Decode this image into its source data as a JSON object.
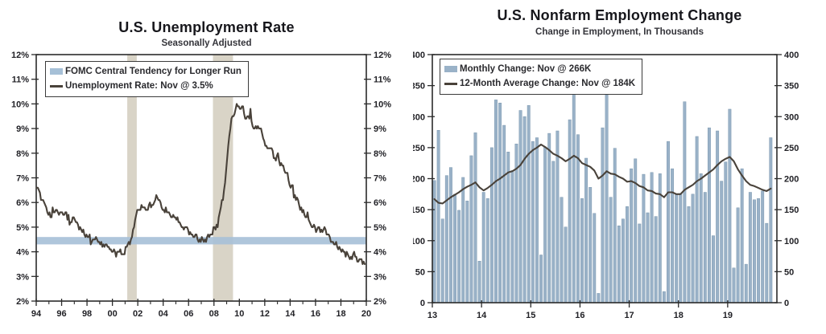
{
  "page": {
    "background": "#ffffff"
  },
  "colors": {
    "bar": "#9AB2C8",
    "bar_edge": "#7E99B0",
    "line": "#49423A",
    "fomc_band": "#A6C0D7",
    "recession_band": "#D9D4C7",
    "axis": "#2B2B2B",
    "text": "#212126"
  },
  "chart_data": [
    {
      "type": "line",
      "title": "U.S. Unemployment Rate",
      "subtitle": "Seasonally Adjusted",
      "legend": [
        {
          "label": "FOMC Central Tendency for Longer Run",
          "swatch": "band"
        },
        {
          "label": "Unemployment Rate: Nov @ 3.5%",
          "swatch": "line"
        }
      ],
      "xlim": [
        1994,
        2020
      ],
      "ylim": [
        2,
        12
      ],
      "y_tick_step": 1,
      "y_suffix": "%",
      "x_major_step": 2,
      "x_tick_labels": [
        "94",
        "96",
        "98",
        "00",
        "02",
        "04",
        "06",
        "08",
        "10",
        "12",
        "14",
        "16",
        "18",
        "20"
      ],
      "grid": false,
      "legend_position": "top-left",
      "fomc_band": {
        "low": 4.3,
        "high": 4.6
      },
      "recession_bands": [
        [
          2001.17,
          2001.92
        ],
        [
          2007.92,
          2009.5
        ]
      ],
      "series": [
        {
          "name": "Unemployment Rate",
          "draw": "line",
          "start_year": 1994,
          "freq": "monthly",
          "values": [
            6.6,
            6.6,
            6.5,
            6.4,
            6.1,
            6.1,
            6.1,
            6.0,
            5.9,
            5.8,
            5.6,
            5.5,
            5.6,
            5.4,
            5.4,
            5.8,
            5.6,
            5.6,
            5.7,
            5.7,
            5.6,
            5.5,
            5.6,
            5.6,
            5.6,
            5.5,
            5.5,
            5.6,
            5.6,
            5.3,
            5.5,
            5.1,
            5.2,
            5.2,
            5.4,
            5.4,
            5.3,
            5.2,
            5.2,
            5.1,
            4.9,
            5.0,
            4.9,
            4.8,
            4.9,
            4.7,
            4.6,
            4.7,
            4.6,
            4.6,
            4.7,
            4.3,
            4.4,
            4.5,
            4.5,
            4.5,
            4.6,
            4.5,
            4.4,
            4.4,
            4.3,
            4.4,
            4.2,
            4.3,
            4.2,
            4.3,
            4.3,
            4.2,
            4.2,
            4.1,
            4.1,
            4.0,
            4.0,
            4.1,
            4.0,
            3.8,
            4.0,
            4.0,
            4.0,
            4.1,
            3.9,
            3.9,
            3.9,
            3.9,
            4.2,
            4.2,
            4.3,
            4.4,
            4.3,
            4.5,
            4.6,
            4.9,
            5.0,
            5.3,
            5.5,
            5.7,
            5.7,
            5.7,
            5.7,
            5.9,
            5.8,
            5.8,
            5.8,
            5.7,
            5.7,
            5.7,
            5.9,
            6.0,
            5.8,
            5.9,
            5.9,
            6.0,
            6.1,
            6.3,
            6.2,
            6.1,
            6.1,
            6.0,
            5.8,
            5.7,
            5.7,
            5.6,
            5.8,
            5.6,
            5.6,
            5.6,
            5.5,
            5.4,
            5.4,
            5.5,
            5.4,
            5.4,
            5.3,
            5.4,
            5.2,
            5.2,
            5.1,
            5.0,
            5.0,
            4.9,
            5.0,
            5.0,
            5.0,
            4.9,
            4.7,
            4.8,
            4.7,
            4.7,
            4.6,
            4.6,
            4.7,
            4.7,
            4.5,
            4.4,
            4.5,
            4.4,
            4.6,
            4.5,
            4.4,
            4.5,
            4.4,
            4.6,
            4.7,
            4.6,
            4.7,
            4.7,
            4.7,
            5.0,
            5.0,
            4.9,
            5.1,
            5.0,
            5.4,
            5.6,
            5.8,
            6.1,
            6.1,
            6.5,
            6.8,
            7.3,
            7.8,
            8.3,
            8.7,
            9.0,
            9.4,
            9.5,
            9.5,
            9.6,
            9.8,
            10.0,
            9.9,
            9.9,
            9.8,
            9.8,
            9.9,
            9.9,
            9.6,
            9.4,
            9.4,
            9.5,
            9.5,
            9.4,
            9.8,
            9.3,
            9.1,
            9.0,
            9.0,
            9.1,
            9.0,
            9.1,
            9.0,
            9.0,
            9.0,
            8.8,
            8.6,
            8.5,
            8.3,
            8.3,
            8.2,
            8.2,
            8.2,
            8.2,
            8.2,
            8.1,
            7.8,
            7.8,
            7.7,
            7.9,
            8.0,
            7.7,
            7.5,
            7.6,
            7.5,
            7.5,
            7.3,
            7.2,
            7.2,
            7.2,
            6.9,
            6.7,
            6.6,
            6.7,
            6.7,
            6.2,
            6.3,
            6.1,
            6.2,
            6.1,
            5.9,
            5.7,
            5.8,
            5.6,
            5.7,
            5.5,
            5.4,
            5.4,
            5.6,
            5.3,
            5.2,
            5.1,
            5.0,
            5.0,
            5.1,
            5.0,
            4.8,
            4.9,
            5.0,
            5.0,
            4.8,
            4.9,
            4.8,
            4.9,
            5.0,
            4.9,
            4.7,
            4.7,
            4.7,
            4.6,
            4.4,
            4.4,
            4.4,
            4.3,
            4.3,
            4.4,
            4.2,
            4.1,
            4.2,
            4.1,
            4.0,
            4.1,
            4.0,
            4.0,
            3.8,
            4.0,
            3.9,
            3.8,
            3.7,
            3.8,
            3.7,
            3.9,
            4.0,
            3.8,
            3.8,
            3.6,
            3.6,
            3.7,
            3.7,
            3.7,
            3.5,
            3.6,
            3.5
          ]
        }
      ]
    },
    {
      "type": "bar",
      "title": "U.S. Nonfarm Employment Change",
      "subtitle": "Change in Employment, In Thousands",
      "legend": [
        {
          "label": "Monthly Change: Nov @ 266K",
          "swatch": "bar"
        },
        {
          "label": "12-Month Average Change: Nov @ 184K",
          "swatch": "line"
        }
      ],
      "xlim": [
        2013,
        2020
      ],
      "ylim": [
        0,
        400
      ],
      "y_tick_step": 50,
      "y_suffix": "",
      "x_major_step": 1,
      "x_tick_labels": [
        "13",
        "14",
        "15",
        "16",
        "17",
        "18",
        "19"
      ],
      "grid": false,
      "legend_position": "top-left",
      "series": [
        {
          "name": "Monthly Change",
          "draw": "bar",
          "start_year": 2013,
          "freq": "monthly",
          "values": [
            197,
            278,
            135,
            205,
            218,
            175,
            149,
            202,
            164,
            237,
            274,
            67,
            178,
            168,
            250,
            327,
            322,
            286,
            243,
            213,
            256,
            310,
            300,
            318,
            260,
            266,
            77,
            251,
            273,
            228,
            277,
            170,
            122,
            295,
            338,
            271,
            168,
            233,
            186,
            144,
            15,
            282,
            335,
            170,
            249,
            124,
            135,
            155,
            216,
            232,
            127,
            207,
            145,
            210,
            139,
            208,
            18,
            260,
            216,
            175,
            176,
            324,
            155,
            175,
            268,
            208,
            178,
            282,
            108,
            277,
            196,
            227,
            312,
            56,
            153,
            216,
            62,
            178,
            166,
            168,
            180,
            128,
            266
          ]
        },
        {
          "name": "12-Month Average Change",
          "draw": "line",
          "start_year": 2013,
          "freq": "monthly",
          "values": [
            167,
            161,
            160,
            165,
            170,
            174,
            178,
            183,
            187,
            190,
            194,
            186,
            181,
            185,
            190,
            196,
            200,
            205,
            210,
            212,
            216,
            222,
            232,
            240,
            246,
            250,
            255,
            251,
            246,
            240,
            237,
            233,
            228,
            232,
            237,
            233,
            225,
            222,
            219,
            213,
            200,
            205,
            212,
            208,
            207,
            203,
            200,
            195,
            196,
            193,
            188,
            186,
            181,
            180,
            176,
            175,
            170,
            178,
            178,
            175,
            175,
            182,
            186,
            190,
            196,
            200,
            205,
            210,
            215,
            222,
            228,
            232,
            235,
            228,
            215,
            205,
            196,
            190,
            188,
            185,
            182,
            180,
            184
          ]
        }
      ]
    }
  ]
}
